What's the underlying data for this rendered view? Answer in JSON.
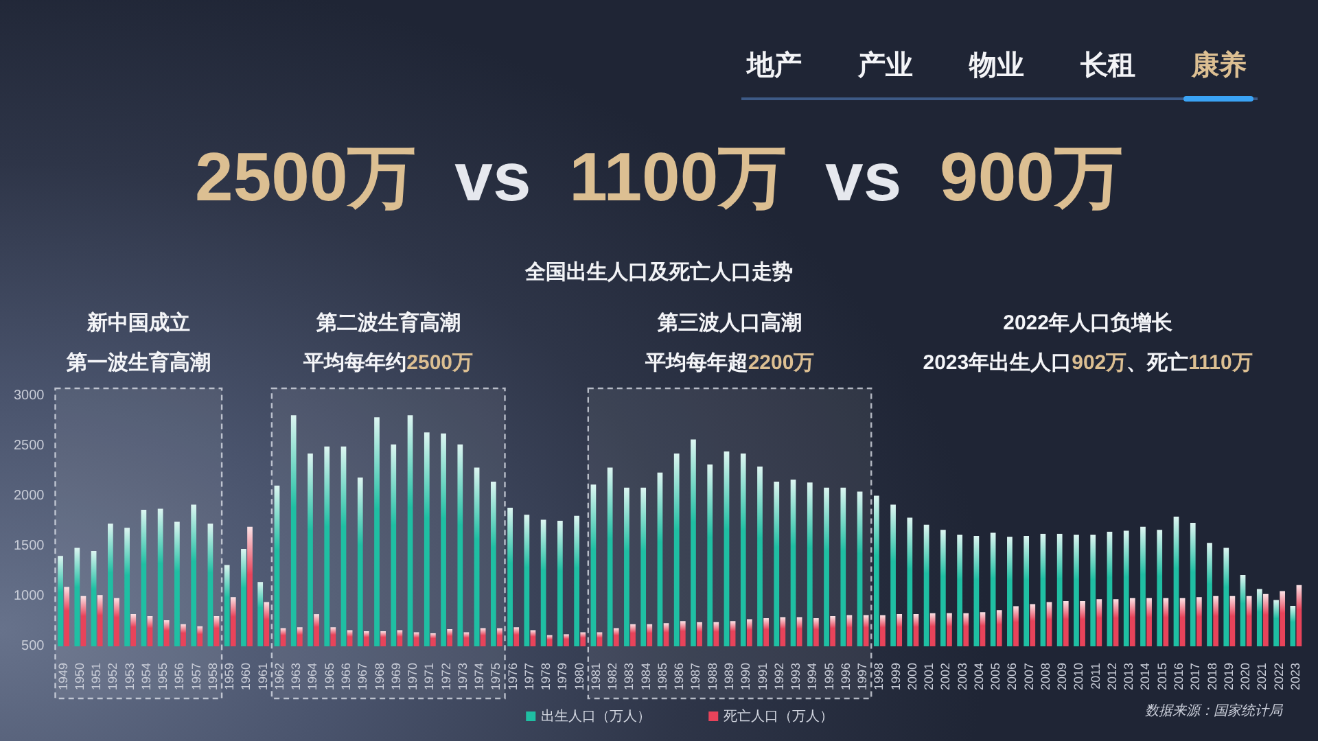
{
  "chart_data": {
    "type": "bar",
    "title": "2500万 vs 1100万 vs 900万",
    "subtitle": "全国出生人口及死亡人口走势",
    "categories": [
      "1949",
      "1950",
      "1951",
      "1952",
      "1953",
      "1954",
      "1955",
      "1956",
      "1957",
      "1958",
      "1959",
      "1960",
      "1961",
      "1962",
      "1963",
      "1964",
      "1965",
      "1966",
      "1967",
      "1968",
      "1969",
      "1970",
      "1971",
      "1972",
      "1973",
      "1974",
      "1975",
      "1976",
      "1977",
      "1978",
      "1979",
      "1980",
      "1981",
      "1982",
      "1983",
      "1984",
      "1985",
      "1986",
      "1987",
      "1988",
      "1989",
      "1990",
      "1991",
      "1992",
      "1993",
      "1994",
      "1995",
      "1996",
      "1997",
      "1998",
      "1999",
      "2000",
      "2001",
      "2002",
      "2003",
      "2004",
      "2005",
      "2006",
      "2007",
      "2008",
      "2009",
      "2010",
      "2011",
      "2012",
      "2013",
      "2014",
      "2015",
      "2016",
      "2017",
      "2018",
      "2019",
      "2020",
      "2021",
      "2022",
      "2023"
    ],
    "series": [
      {
        "name": "出生人口（万人）",
        "color": "#1fbfa3",
        "values": [
          1400,
          1480,
          1450,
          1720,
          1680,
          1860,
          1870,
          1740,
          1910,
          1720,
          1310,
          1470,
          1140,
          2100,
          2800,
          2420,
          2490,
          2490,
          2180,
          2780,
          2510,
          2800,
          2630,
          2620,
          2510,
          2280,
          2140,
          1880,
          1810,
          1760,
          1750,
          1800,
          2110,
          2280,
          2080,
          2080,
          2230,
          2420,
          2560,
          2310,
          2440,
          2420,
          2290,
          2140,
          2160,
          2130,
          2080,
          2080,
          2040,
          2000,
          1910,
          1780,
          1710,
          1660,
          1610,
          1600,
          1630,
          1590,
          1600,
          1620,
          1620,
          1610,
          1610,
          1640,
          1650,
          1690,
          1660,
          1790,
          1730,
          1530,
          1480,
          1210,
          1070,
          960,
          902
        ]
      },
      {
        "name": "死亡人口（万人）",
        "color": "#e8435a",
        "values": [
          1090,
          1000,
          1010,
          980,
          820,
          800,
          760,
          720,
          700,
          800,
          990,
          1690,
          940,
          680,
          690,
          820,
          690,
          660,
          650,
          650,
          660,
          640,
          630,
          670,
          640,
          680,
          680,
          690,
          660,
          610,
          620,
          640,
          640,
          680,
          720,
          720,
          730,
          750,
          740,
          740,
          750,
          770,
          780,
          790,
          790,
          780,
          800,
          810,
          810,
          810,
          820,
          820,
          830,
          830,
          830,
          840,
          860,
          900,
          920,
          940,
          950,
          950,
          970,
          970,
          980,
          980,
          980,
          980,
          990,
          1000,
          1000,
          1000,
          1020,
          1050,
          1110
        ]
      }
    ],
    "ylim": [
      500,
      3000
    ],
    "yticks": [
      500,
      1000,
      1500,
      2000,
      2500,
      3000
    ],
    "grid": false,
    "legend": "bottom",
    "bands": [
      {
        "axis": "x",
        "from": "1949",
        "to": "1958",
        "label": "新中国成立"
      },
      {
        "axis": "x",
        "from": "1962",
        "to": "1975",
        "label": "第二波生育高潮"
      },
      {
        "axis": "x",
        "from": "1981",
        "to": "1997",
        "label": "第三波人口高潮"
      }
    ],
    "annotations": [
      "地产",
      "产业",
      "物业",
      "长租",
      "康养",
      "第一波生育高潮",
      "平均每年约2500万",
      "平均每年超2200万",
      "2022年人口负增长",
      "2023年出生人口902万、死亡1110万",
      "数据来源：国家统计局"
    ]
  }
}
